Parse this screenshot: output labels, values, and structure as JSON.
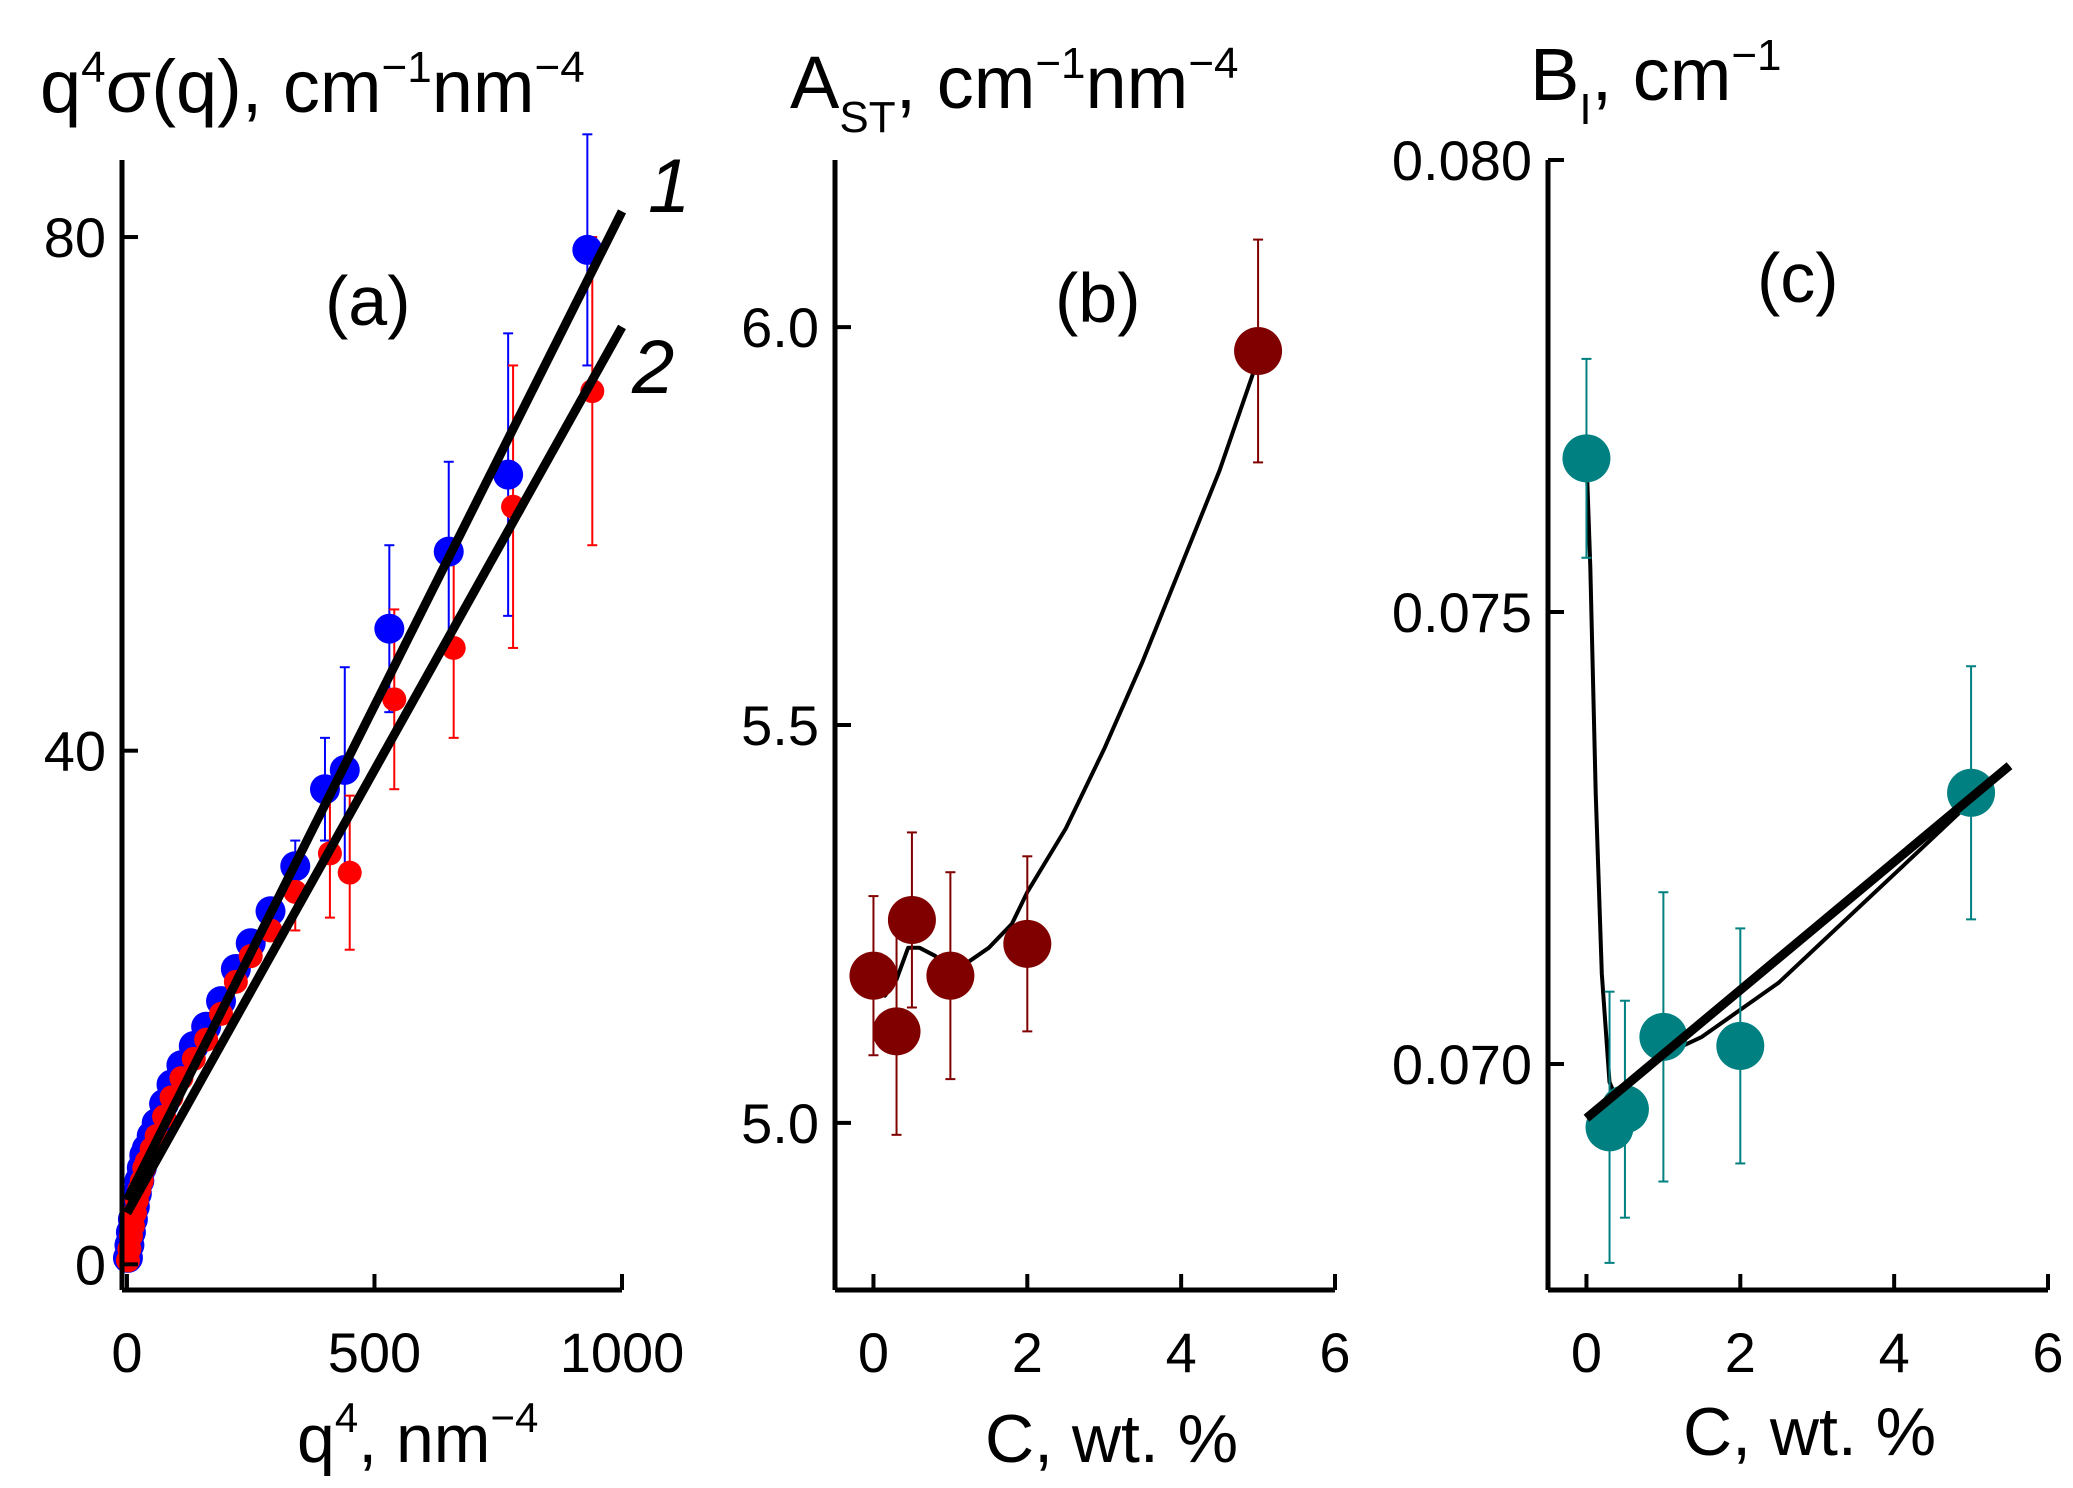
{
  "chart_data": [
    {
      "panel": "(a)",
      "type": "scatter",
      "title": "q⁴σ(q), cm⁻¹nm⁻⁴",
      "title_parts": {
        "base": "q",
        "sup1": "4",
        "mid": "σ(q), cm",
        "sup2": "−1",
        "mid2": "nm",
        "sup3": "−4"
      },
      "xlabel": "q⁴, nm⁻⁴",
      "xlabel_parts": {
        "base": "q",
        "sup1": "4",
        "mid": ", nm",
        "sup2": "−4"
      },
      "ylabel": "",
      "xlim": [
        -10,
        1000
      ],
      "ylim": [
        -2,
        86
      ],
      "xticks": [
        0,
        500,
        1000
      ],
      "yticks": [
        0,
        40,
        80
      ],
      "grid": false,
      "series": [
        {
          "color": "#0000ff",
          "marker": "large-circle",
          "x": [
            2,
            5,
            8,
            12,
            16,
            20,
            25,
            30,
            35,
            40,
            50,
            60,
            75,
            90,
            110,
            135,
            160,
            190,
            220,
            250,
            290,
            340,
            400,
            440,
            530,
            650,
            770,
            930
          ],
          "y": [
            0.5,
            1.5,
            2.5,
            3.5,
            4.5,
            5.5,
            6.5,
            7.5,
            8.5,
            9,
            10,
            11,
            12.5,
            14,
            15.5,
            17,
            18.5,
            20.5,
            23,
            25,
            27.5,
            31,
            37,
            38.5,
            49.5,
            55.5,
            61.5,
            79
          ],
          "error": [
            0,
            0,
            0,
            0,
            0,
            0,
            0,
            0,
            0,
            0,
            0,
            0,
            0,
            0,
            0,
            0,
            0,
            0,
            0,
            0,
            0,
            2,
            4,
            8,
            6.5,
            7,
            11,
            9
          ]
        },
        {
          "color": "#ff0000",
          "marker": "small-circle",
          "x": [
            2,
            5,
            8,
            12,
            16,
            20,
            25,
            30,
            35,
            40,
            50,
            60,
            75,
            90,
            110,
            135,
            160,
            190,
            220,
            250,
            290,
            340,
            410,
            450,
            540,
            660,
            780,
            940
          ],
          "y": [
            0.3,
            1.2,
            2.2,
            3,
            4,
            5,
            5.8,
            6.5,
            7.5,
            8,
            9,
            10,
            11.5,
            13,
            14.5,
            16,
            17.5,
            19.5,
            22,
            24,
            26,
            29,
            32,
            30.5,
            44,
            48,
            59,
            68
          ],
          "error": [
            0,
            0,
            0,
            0,
            0,
            0,
            0,
            0,
            0,
            0,
            0,
            0,
            0,
            0,
            0,
            0,
            0,
            0,
            0,
            0,
            0,
            3,
            5,
            6,
            7,
            7,
            11,
            12
          ]
        }
      ],
      "lines": [
        {
          "label": "1",
          "x": [
            0,
            1000
          ],
          "y": [
            5,
            82
          ]
        },
        {
          "label": "2",
          "x": [
            0,
            1000
          ],
          "y": [
            4,
            73
          ]
        }
      ],
      "annotations": [
        "(a)"
      ]
    },
    {
      "panel": "(b)",
      "type": "scatter",
      "title": "A_ST, cm⁻¹nm⁻⁴",
      "title_parts": {
        "base": "A",
        "sub": "ST",
        "mid": ", cm",
        "sup1": "−1",
        "mid2": "nm",
        "sup2": "−4"
      },
      "xlabel": "C, wt. %",
      "ylabel": "",
      "xlim": [
        -0.5,
        6
      ],
      "ylim": [
        4.79,
        6.21
      ],
      "xticks": [
        0,
        2,
        4,
        6
      ],
      "yticks": [
        5.0,
        5.5,
        6.0
      ],
      "ytick_labels": [
        "5.0",
        "5.5",
        "6.0"
      ],
      "grid": false,
      "series": [
        {
          "color": "#800000",
          "marker": "large-circle",
          "x": [
            0,
            0.3,
            0.5,
            1,
            2,
            5
          ],
          "y": [
            5.185,
            5.115,
            5.255,
            5.185,
            5.225,
            5.97
          ],
          "error": [
            0.1,
            0.13,
            0.11,
            0.13,
            0.11,
            0.14
          ]
        }
      ],
      "curve": {
        "x": [
          0,
          0.15,
          0.3,
          0.45,
          0.6,
          0.8,
          1.0,
          1.2,
          1.5,
          1.8,
          2.0,
          2.5,
          3.0,
          3.5,
          4.0,
          4.5,
          5.0
        ],
        "y": [
          5.18,
          5.16,
          5.18,
          5.22,
          5.22,
          5.21,
          5.19,
          5.2,
          5.22,
          5.25,
          5.29,
          5.37,
          5.47,
          5.58,
          5.7,
          5.82,
          5.96
        ]
      },
      "annotations": [
        "(b)"
      ]
    },
    {
      "panel": "(c)",
      "type": "scatter",
      "title": "B_I, cm⁻¹",
      "title_parts": {
        "base": "B",
        "sub": "I",
        "mid": ", cm",
        "sup1": "−1"
      },
      "xlabel": "C, wt. %",
      "ylabel": "",
      "xlim": [
        -0.5,
        6
      ],
      "ylim": [
        0.0675,
        0.08
      ],
      "xticks": [
        0,
        2,
        4,
        6
      ],
      "yticks": [
        0.07,
        0.075,
        0.08
      ],
      "ytick_labels": [
        "0.070",
        "0.075",
        "0.080"
      ],
      "grid": false,
      "series": [
        {
          "color": "#008080",
          "marker": "large-circle",
          "x": [
            0,
            0.3,
            0.5,
            1,
            2,
            5
          ],
          "y": [
            0.0767,
            0.0693,
            0.0695,
            0.0703,
            0.0702,
            0.073
          ],
          "error": [
            0.0011,
            0.0015,
            0.0012,
            0.0016,
            0.0013,
            0.0014
          ]
        }
      ],
      "curve": {
        "x": [
          0,
          0.05,
          0.12,
          0.2,
          0.3,
          0.4,
          0.5,
          0.7,
          1.0,
          1.5,
          2.0,
          2.5,
          3.0,
          3.5,
          4.0,
          4.5,
          5.0,
          5.5
        ],
        "y": [
          0.0767,
          0.0755,
          0.073,
          0.071,
          0.0698,
          0.0696,
          0.0697,
          0.0699,
          0.0701,
          0.0703,
          0.0706,
          0.0709,
          0.0713,
          0.0717,
          0.0721,
          0.0725,
          0.0729,
          0.0733
        ]
      },
      "fit_line": {
        "x": [
          0,
          5.5
        ],
        "y": [
          0.0694,
          0.0733
        ]
      },
      "annotations": [
        "(c)"
      ]
    }
  ]
}
